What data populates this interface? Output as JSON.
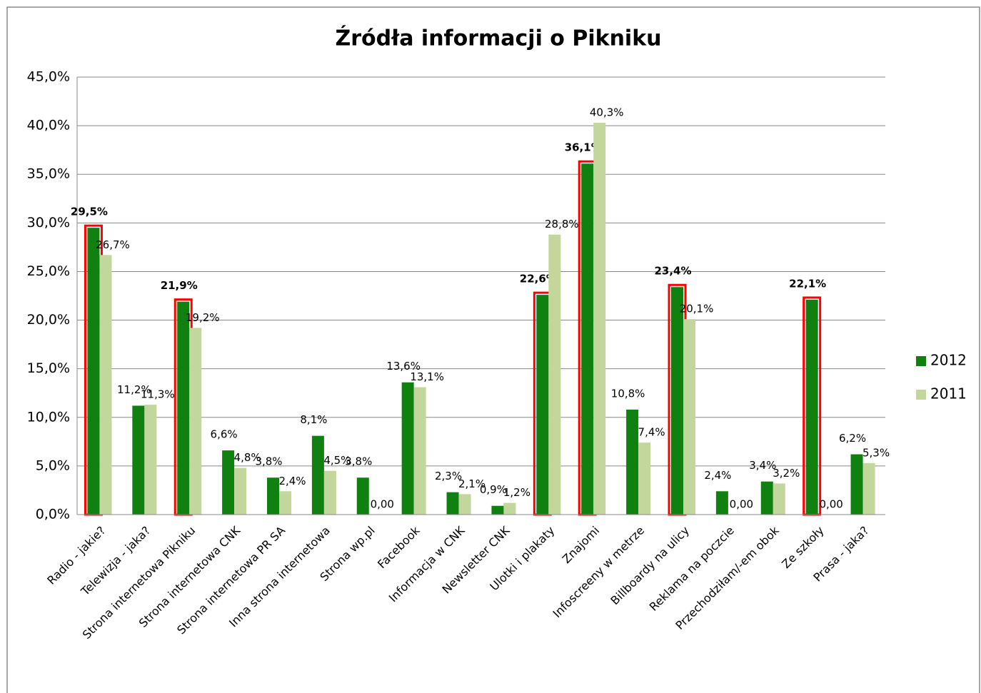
{
  "chart_data": {
    "type": "bar",
    "title": "Źródła informacji o Pikniku",
    "categories": [
      "Radio - jakie?",
      "Telewizja - jaka?",
      "Strona internetowa Pikniku",
      "Strona internetowa CNK",
      "Strona internetowa PR SA",
      "Inna strona internetowa",
      "Strona wp.pl",
      "Facebook",
      "Informacja w CNK",
      "Newsletter CNK",
      "Ulotki i plakaty",
      "Znajomi",
      "Infoscreeny w metrze",
      "Billboardy na ulicy",
      "Reklama na poczcie",
      "Przechodziłam/-em obok",
      "Ze szkoły",
      "Prasa - jaka?"
    ],
    "series": [
      {
        "name": "2012",
        "color": "#108010",
        "values": [
          29.5,
          11.2,
          21.9,
          6.6,
          3.8,
          8.1,
          3.8,
          13.6,
          2.3,
          0.9,
          22.6,
          36.1,
          10.8,
          23.4,
          2.4,
          3.4,
          22.1,
          6.2
        ],
        "value_labels": [
          "29,5%",
          "11,2%",
          "21,9%",
          "6,6%",
          "3,8%",
          "8,1%",
          "3,8%",
          "13,6%",
          "2,3%",
          "0,9%",
          "22,6%",
          "36,1%",
          "10,8%",
          "23,4%",
          "2,4%",
          "3,4%",
          "22,1%",
          "6,2%"
        ]
      },
      {
        "name": "2011",
        "color": "#c3d69b",
        "values": [
          26.7,
          11.3,
          19.2,
          4.8,
          2.4,
          4.5,
          0,
          13.1,
          2.1,
          1.2,
          28.8,
          40.3,
          7.4,
          20.1,
          0,
          3.2,
          0,
          5.3
        ],
        "value_labels": [
          "26,7%",
          "11,3%",
          "19,2%",
          "4,8%",
          "2,4%",
          "4,5%",
          "0,00",
          "13,1%",
          "2,1%",
          "1,2%",
          "28,8%",
          "40,3%",
          "7,4%",
          "20,1%",
          "0,00",
          "3,2%",
          "0,00",
          "5,3%"
        ]
      }
    ],
    "highlighted": [
      0,
      2,
      10,
      11,
      13,
      16
    ],
    "highlight_color": "#ff0000",
    "ylim": [
      0,
      45
    ],
    "yticks": [
      {
        "value": 0,
        "label": "0,0%"
      },
      {
        "value": 5,
        "label": "5,0%"
      },
      {
        "value": 10,
        "label": "10,0%"
      },
      {
        "value": 15,
        "label": "15,0%"
      },
      {
        "value": 20,
        "label": "20,0%"
      },
      {
        "value": 25,
        "label": "25,0%"
      },
      {
        "value": 30,
        "label": "30,0%"
      },
      {
        "value": 35,
        "label": "35,0%"
      },
      {
        "value": 40,
        "label": "40,0%"
      },
      {
        "value": 45,
        "label": "45,0%"
      }
    ],
    "grid": true,
    "legend": "right"
  }
}
